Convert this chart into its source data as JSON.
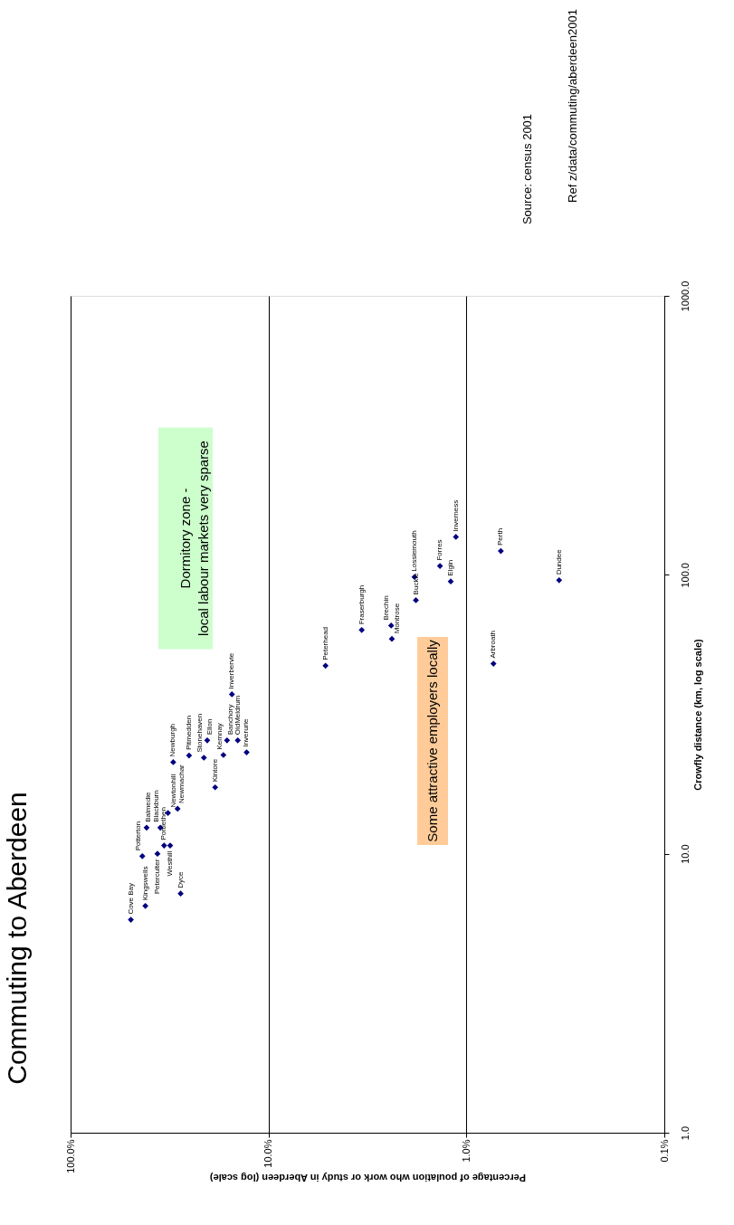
{
  "chart_data": {
    "type": "scatter",
    "title": "Commuting to Aberdeen",
    "xlabel": "Percentage of poulation who work or study in Aberdeen (log scale)",
    "ylabel": "Crowfly distance (km, log scale)",
    "log": "xy",
    "grid": "x",
    "marker": "diamond",
    "xlim": [
      100,
      0.1
    ],
    "xticks": [
      {
        "value": 100,
        "label": "100.0%"
      },
      {
        "value": 10,
        "label": "10.0%"
      },
      {
        "value": 1,
        "label": "1.0%"
      },
      {
        "value": 0.1,
        "label": "0.1%"
      }
    ],
    "ylim": [
      1,
      1000
    ],
    "yticks": [
      {
        "value": 1,
        "label": "1.0"
      },
      {
        "value": 10,
        "label": "10.0"
      },
      {
        "value": 100,
        "label": "100.0"
      },
      {
        "value": 1000,
        "label": "1000.0"
      }
    ],
    "series": [
      {
        "color": "#000080",
        "x": [
          49.6,
          41.9,
          27.8,
          43.4,
          36.4,
          33.7,
          31.4,
          41.3,
          35.2,
          32.2,
          28.8,
          30.3,
          25.2,
          21.2,
          20.4,
          18.6,
          16.9,
          16.2,
          15.3,
          14.3,
          12.9,
          5.15,
          3.38,
          2.4,
          2.38,
          1.83,
          1.8,
          1.36,
          1.2,
          1.13,
          0.67,
          0.34,
          0.73
        ],
        "values": [
          5.8,
          6.5,
          7.2,
          9.8,
          10.0,
          10.7,
          10.7,
          12.4,
          12.4,
          14.0,
          14.5,
          21.3,
          22.5,
          22.1,
          25.5,
          17.3,
          22.6,
          25.5,
          37.3,
          25.5,
          23.1,
          47.2,
          63.4,
          65.8,
          58.9,
          98.2,
          81.1,
          107.6,
          94.7,
          136.7,
          121.7,
          95.6,
          48.0
        ]
      }
    ],
    "annotations": [
      {
        "text": "Cove Bay",
        "x": 49.6,
        "y": 5.8
      },
      {
        "text": "Kingswells",
        "x": 41.9,
        "y": 6.5
      },
      {
        "text": "Dyce",
        "x": 27.8,
        "y": 7.2
      },
      {
        "text": "Potterton",
        "x": 43.4,
        "y": 9.8
      },
      {
        "text": "Peterculter",
        "x": 36.4,
        "y": 10.0
      },
      {
        "text": "Portlethen",
        "x": 33.7,
        "y": 10.7
      },
      {
        "text": "Westhill",
        "x": 31.4,
        "y": 10.7
      },
      {
        "text": "Balmedie",
        "x": 41.3,
        "y": 12.4
      },
      {
        "text": "Blackburn",
        "x": 35.2,
        "y": 12.4
      },
      {
        "text": "Newtonhill",
        "x": 32.2,
        "y": 14.0
      },
      {
        "text": "Newmachar",
        "x": 28.8,
        "y": 14.5
      },
      {
        "text": "Newburgh",
        "x": 30.3,
        "y": 21.3
      },
      {
        "text": "Pitmedden",
        "x": 25.2,
        "y": 22.5
      },
      {
        "text": "Stonehaven",
        "x": 21.2,
        "y": 22.1
      },
      {
        "text": "Ellon",
        "x": 20.4,
        "y": 25.5
      },
      {
        "text": "Kintore",
        "x": 18.6,
        "y": 17.3
      },
      {
        "text": "Kemnay",
        "x": 16.9,
        "y": 22.6
      },
      {
        "text": "Banchory",
        "x": 16.2,
        "y": 25.5
      },
      {
        "text": "Inverbervie",
        "x": 15.3,
        "y": 37.3
      },
      {
        "text": "OldMeldrum",
        "x": 14.3,
        "y": 25.5
      },
      {
        "text": "Inverurie",
        "x": 12.9,
        "y": 23.1
      },
      {
        "text": "Peterhead",
        "x": 5.15,
        "y": 47.2
      },
      {
        "text": "Fraserburgh",
        "x": 3.38,
        "y": 63.4
      },
      {
        "text": "Brechin",
        "x": 2.4,
        "y": 65.8
      },
      {
        "text": "Montrose",
        "x": 2.38,
        "y": 58.9
      },
      {
        "text": "Lossiemouth",
        "x": 1.83,
        "y": 98.2
      },
      {
        "text": "Buckie",
        "x": 1.8,
        "y": 81.1
      },
      {
        "text": "Forres",
        "x": 1.36,
        "y": 107.6
      },
      {
        "text": "Elgin",
        "x": 1.2,
        "y": 94.7
      },
      {
        "text": "Inverness",
        "x": 1.13,
        "y": 136.7
      },
      {
        "text": "Perth",
        "x": 0.67,
        "y": 121.7
      },
      {
        "text": "Dundee",
        "x": 0.34,
        "y": 95.6
      },
      {
        "text": "Arbroath",
        "x": 0.73,
        "y": 48.0
      },
      "Dormitory zone -\nlocal labour markets very sparse",
      "Some attractive employers locally",
      "Source:   census 2001",
      "Ref z/data/commuting/aberdeen2001"
    ]
  }
}
